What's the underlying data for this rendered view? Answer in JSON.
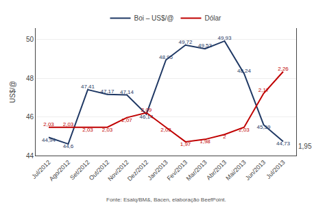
{
  "chart_data": {
    "type": "line",
    "categories": [
      "Jul/2012",
      "Ago/2012",
      "Set/2012",
      "Out/2012",
      "Nov/2012",
      "Dez/2012",
      "Jan/2013",
      "Fev/2013",
      "Mar/2013",
      "Abr/2013",
      "Mai/2013",
      "Jun/2013",
      "Jul/2013"
    ],
    "series": [
      {
        "name": "Boi – US$/@",
        "color": "#1F3864",
        "values": [
          44.94,
          44.6,
          47.41,
          47.17,
          47.14,
          46.14,
          48.95,
          49.72,
          49.53,
          49.93,
          48.24,
          45.59,
          44.73
        ],
        "value_labels": [
          "44,94",
          "44,6",
          "47,41",
          "47,17",
          "47,14",
          "46,14",
          "48,95",
          "49,72",
          "49,53",
          "49,93",
          "48,24",
          "45,59",
          "44,73"
        ]
      },
      {
        "name": "Dólar",
        "color": "#C00000",
        "axis": "y2",
        "values": [
          2.03,
          2.03,
          2.03,
          2.03,
          2.07,
          2.09,
          2.03,
          1.97,
          1.98,
          2.0,
          2.03,
          2.17,
          2.26
        ],
        "value_labels": [
          "2,03",
          "2,03",
          "2,03",
          "2,03",
          "2,07",
          "2,09",
          "2,03",
          "1,97",
          "1,98",
          "2",
          "2,03",
          "2,17",
          "2,26"
        ]
      }
    ],
    "ylabel": "US$/@",
    "ylim": [
      44.0,
      50.6
    ],
    "yticks": [
      44,
      46,
      48,
      50
    ],
    "y2lim": [
      1.913,
      2.44
    ],
    "y2ticks": [
      {
        "value": 1.95,
        "label": "1,95"
      }
    ],
    "grid": true,
    "legend": "top",
    "data_labels": true,
    "annotations": [
      "Fonte: Esalq/BM&, Bacen, elaboração BeefPoint."
    ]
  }
}
